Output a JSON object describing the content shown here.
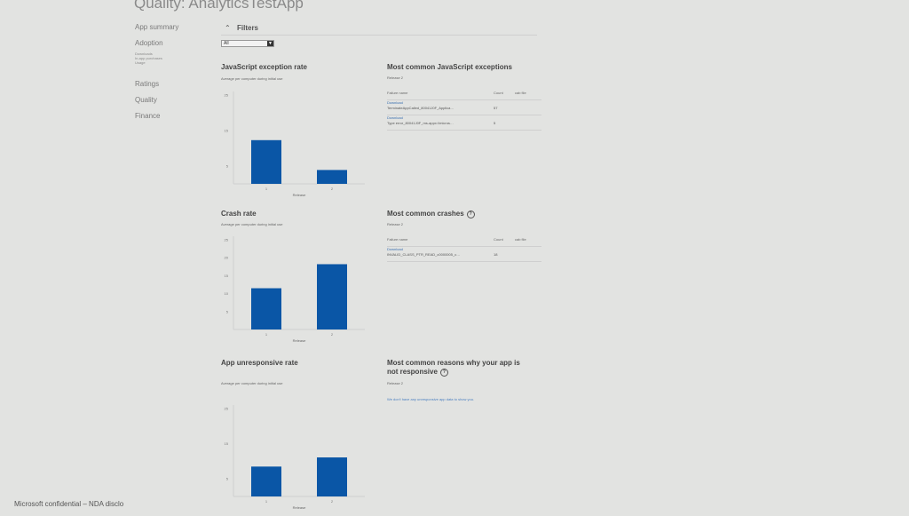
{
  "page": {
    "title": "Quality: AnalyticsTestApp"
  },
  "sidebar": {
    "app_summary": "App summary",
    "adoption": "Adoption",
    "adoption_sub": [
      "Downloads",
      "In-app purchases",
      "Usage"
    ],
    "ratings": "Ratings",
    "quality": "Quality",
    "finance": "Finance"
  },
  "filters": {
    "label": "Filters",
    "select_value": "All"
  },
  "sections": {
    "js_rate": {
      "title": "JavaScript exception rate",
      "subtitle": "Average per computer during initial use"
    },
    "crash_rate": {
      "title": "Crash rate",
      "subtitle": "Average per computer during initial use"
    },
    "unresponsive_rate": {
      "title": "App unresponsive rate",
      "subtitle": "Average per computer during initial use"
    },
    "js_exceptions": {
      "title": "Most common JavaScript exceptions",
      "release": "Release 2",
      "headers": [
        "Failure name",
        "Count",
        "cab file"
      ],
      "rows": [
        [
          "TerminateAppCalled_80041J0F_Applica…",
          "57",
          "Download"
        ],
        [
          "Type error_80041J0F_ms-appx://micros…",
          "5",
          "Download"
        ]
      ]
    },
    "crashes": {
      "title": "Most common crashes",
      "release": "Release 2",
      "headers": [
        "Failure name",
        "Count",
        "cab file"
      ],
      "rows": [
        [
          "INVALID_CLASS_PTR_READ_c0000005_c…",
          "18",
          "Download"
        ]
      ]
    },
    "not_responsive": {
      "title_line1": "Most common reasons why your app is",
      "title_line2": "not responsive",
      "release": "Release 2",
      "message": "We don't have any unresponsive app data to show you."
    }
  },
  "chart_data": [
    {
      "type": "bar",
      "title": "JavaScript exception rate",
      "xlabel": "Release",
      "categories": [
        "1",
        "2"
      ],
      "values": [
        12.3,
        3.9
      ],
      "yticks": [
        5,
        15,
        25
      ],
      "ylim": [
        0,
        25
      ],
      "color": "#0a56a6"
    },
    {
      "type": "bar",
      "title": "Crash rate",
      "xlabel": "Release",
      "categories": [
        "1",
        "2"
      ],
      "values": [
        11.5,
        18.2
      ],
      "yticks": [
        5,
        10,
        15,
        20,
        25
      ],
      "ylim": [
        0,
        25
      ],
      "color": "#0a56a6"
    },
    {
      "type": "bar",
      "title": "App unresponsive rate",
      "xlabel": "Release",
      "categories": [
        "1",
        "2"
      ],
      "values": [
        8.5,
        11.1
      ],
      "yticks": [
        5,
        15,
        25
      ],
      "ylim": [
        0,
        25
      ],
      "color": "#0a56a6"
    }
  ],
  "footer": {
    "text": "Microsoft confidential – NDA disclo"
  }
}
